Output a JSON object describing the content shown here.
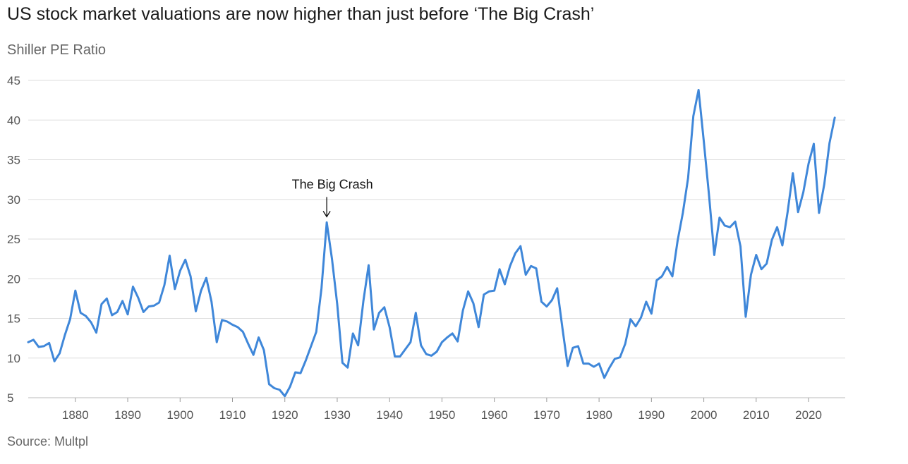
{
  "chart_data": {
    "type": "line",
    "title": "US stock market valuations are now higher than just before ‘The Big Crash’",
    "subtitle": "Shiller PE Ratio",
    "source": "Source: Multpl",
    "xlabel": "",
    "ylabel": "",
    "ylim": [
      5,
      45
    ],
    "xlim": [
      1871,
      2027
    ],
    "yticks": [
      "5",
      "10",
      "15",
      "20",
      "25",
      "30",
      "35",
      "40",
      "45"
    ],
    "xticks": [
      "1880",
      "1890",
      "1900",
      "1910",
      "1920",
      "1930",
      "1940",
      "1950",
      "1960",
      "1970",
      "1980",
      "1990",
      "2000",
      "2010",
      "2020"
    ],
    "grid": true,
    "series": [
      {
        "name": "Shiller PE Ratio",
        "color": "#3f87d9",
        "points": [
          [
            1871,
            12.0
          ],
          [
            1872,
            12.3
          ],
          [
            1873,
            11.4
          ],
          [
            1874,
            11.5
          ],
          [
            1875,
            11.9
          ],
          [
            1876,
            9.6
          ],
          [
            1877,
            10.6
          ],
          [
            1878,
            12.9
          ],
          [
            1879,
            14.9
          ],
          [
            1880,
            18.5
          ],
          [
            1881,
            15.7
          ],
          [
            1882,
            15.3
          ],
          [
            1883,
            14.5
          ],
          [
            1884,
            13.2
          ],
          [
            1885,
            16.8
          ],
          [
            1886,
            17.5
          ],
          [
            1887,
            15.4
          ],
          [
            1888,
            15.8
          ],
          [
            1889,
            17.2
          ],
          [
            1890,
            15.5
          ],
          [
            1891,
            19.0
          ],
          [
            1892,
            17.6
          ],
          [
            1893,
            15.8
          ],
          [
            1894,
            16.5
          ],
          [
            1895,
            16.6
          ],
          [
            1896,
            17.0
          ],
          [
            1897,
            19.2
          ],
          [
            1898,
            22.9
          ],
          [
            1899,
            18.7
          ],
          [
            1900,
            21.0
          ],
          [
            1901,
            22.4
          ],
          [
            1902,
            20.3
          ],
          [
            1903,
            15.9
          ],
          [
            1904,
            18.5
          ],
          [
            1905,
            20.1
          ],
          [
            1906,
            17.1
          ],
          [
            1907,
            12.0
          ],
          [
            1908,
            14.8
          ],
          [
            1909,
            14.6
          ],
          [
            1910,
            14.2
          ],
          [
            1911,
            13.9
          ],
          [
            1912,
            13.3
          ],
          [
            1913,
            11.8
          ],
          [
            1914,
            10.4
          ],
          [
            1915,
            12.6
          ],
          [
            1916,
            11.0
          ],
          [
            1917,
            6.7
          ],
          [
            1918,
            6.2
          ],
          [
            1919,
            6.0
          ],
          [
            1920,
            5.2
          ],
          [
            1921,
            6.4
          ],
          [
            1922,
            8.2
          ],
          [
            1923,
            8.1
          ],
          [
            1924,
            9.7
          ],
          [
            1925,
            11.5
          ],
          [
            1926,
            13.3
          ],
          [
            1927,
            18.8
          ],
          [
            1928,
            27.1
          ],
          [
            1929,
            22.5
          ],
          [
            1930,
            16.8
          ],
          [
            1931,
            9.4
          ],
          [
            1932,
            8.8
          ],
          [
            1933,
            13.1
          ],
          [
            1934,
            11.6
          ],
          [
            1935,
            17.2
          ],
          [
            1936,
            21.7
          ],
          [
            1937,
            13.6
          ],
          [
            1938,
            15.7
          ],
          [
            1939,
            16.4
          ],
          [
            1940,
            13.9
          ],
          [
            1941,
            10.2
          ],
          [
            1942,
            10.2
          ],
          [
            1943,
            11.1
          ],
          [
            1944,
            12.0
          ],
          [
            1945,
            15.7
          ],
          [
            1946,
            11.6
          ],
          [
            1947,
            10.5
          ],
          [
            1948,
            10.3
          ],
          [
            1949,
            10.8
          ],
          [
            1950,
            12.0
          ],
          [
            1951,
            12.6
          ],
          [
            1952,
            13.1
          ],
          [
            1953,
            12.1
          ],
          [
            1954,
            16.0
          ],
          [
            1955,
            18.4
          ],
          [
            1956,
            16.9
          ],
          [
            1957,
            13.9
          ],
          [
            1958,
            18.0
          ],
          [
            1959,
            18.4
          ],
          [
            1960,
            18.5
          ],
          [
            1961,
            21.2
          ],
          [
            1962,
            19.3
          ],
          [
            1963,
            21.6
          ],
          [
            1964,
            23.2
          ],
          [
            1965,
            24.1
          ],
          [
            1966,
            20.5
          ],
          [
            1967,
            21.6
          ],
          [
            1968,
            21.3
          ],
          [
            1969,
            17.1
          ],
          [
            1970,
            16.5
          ],
          [
            1971,
            17.3
          ],
          [
            1972,
            18.8
          ],
          [
            1973,
            13.8
          ],
          [
            1974,
            9.0
          ],
          [
            1975,
            11.3
          ],
          [
            1976,
            11.5
          ],
          [
            1977,
            9.3
          ],
          [
            1978,
            9.3
          ],
          [
            1979,
            8.9
          ],
          [
            1980,
            9.3
          ],
          [
            1981,
            7.5
          ],
          [
            1982,
            8.8
          ],
          [
            1983,
            9.9
          ],
          [
            1984,
            10.1
          ],
          [
            1985,
            11.8
          ],
          [
            1986,
            14.9
          ],
          [
            1987,
            14.0
          ],
          [
            1988,
            15.1
          ],
          [
            1989,
            17.1
          ],
          [
            1990,
            15.6
          ],
          [
            1991,
            19.8
          ],
          [
            1992,
            20.3
          ],
          [
            1993,
            21.5
          ],
          [
            1994,
            20.3
          ],
          [
            1995,
            24.8
          ],
          [
            1996,
            28.3
          ],
          [
            1997,
            32.7
          ],
          [
            1998,
            40.5
          ],
          [
            1999,
            43.8
          ],
          [
            2000,
            37.3
          ],
          [
            2001,
            30.5
          ],
          [
            2002,
            23.0
          ],
          [
            2003,
            27.7
          ],
          [
            2004,
            26.7
          ],
          [
            2005,
            26.5
          ],
          [
            2006,
            27.2
          ],
          [
            2007,
            24.1
          ],
          [
            2008,
            15.2
          ],
          [
            2009,
            20.5
          ],
          [
            2010,
            23.0
          ],
          [
            2011,
            21.2
          ],
          [
            2012,
            21.9
          ],
          [
            2013,
            24.9
          ],
          [
            2014,
            26.5
          ],
          [
            2015,
            24.2
          ],
          [
            2016,
            28.4
          ],
          [
            2017,
            33.3
          ],
          [
            2018,
            28.4
          ],
          [
            2019,
            30.9
          ],
          [
            2020,
            34.5
          ],
          [
            2021,
            37.0
          ],
          [
            2022,
            28.3
          ],
          [
            2023,
            31.9
          ],
          [
            2024,
            37.1
          ],
          [
            2025,
            40.3
          ]
        ]
      }
    ],
    "annotations": [
      {
        "text": "The Big Crash",
        "x": 1928,
        "y": 27.1,
        "style": "down-arrow"
      }
    ]
  }
}
